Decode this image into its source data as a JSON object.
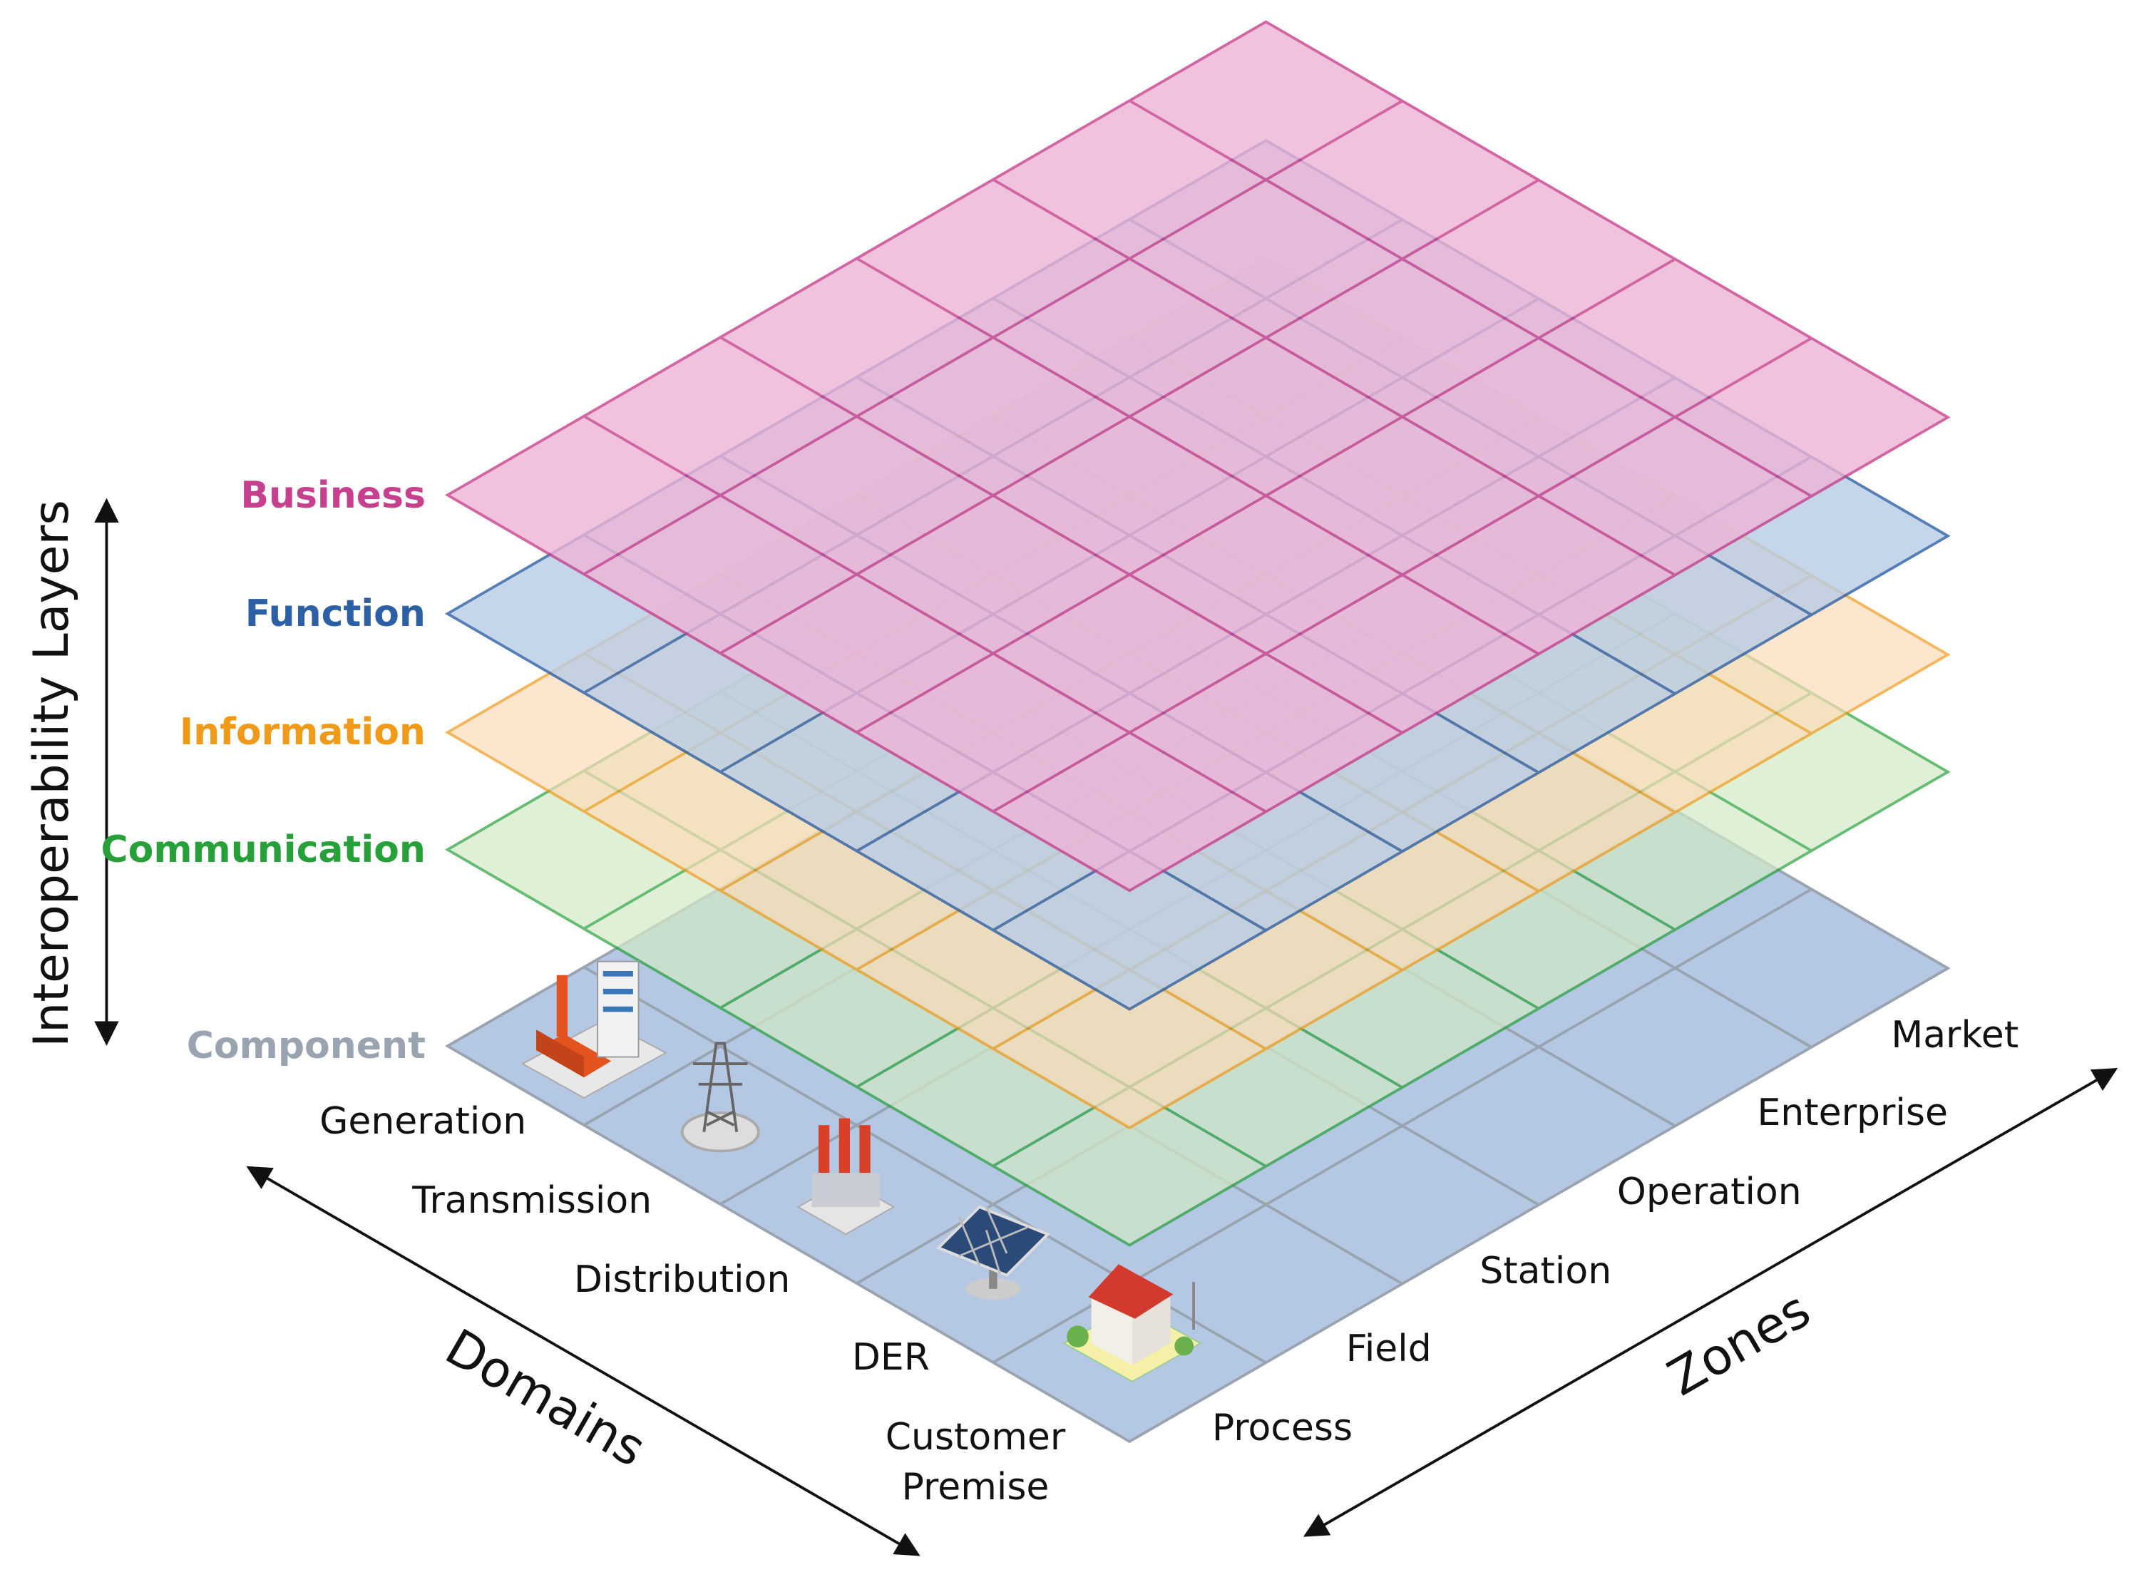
{
  "layers": [
    "Business",
    "Function",
    "Information",
    "Communication",
    "Component"
  ],
  "axis_titles": {
    "layers": "Interoperability Layers",
    "domains": "Domains",
    "zones": "Zones"
  },
  "domains": [
    "Generation",
    "Transmission",
    "Distribution",
    "DER",
    "Customer Premise"
  ],
  "zones": [
    "Process",
    "Field",
    "Station",
    "Operation",
    "Enterprise",
    "Market"
  ]
}
